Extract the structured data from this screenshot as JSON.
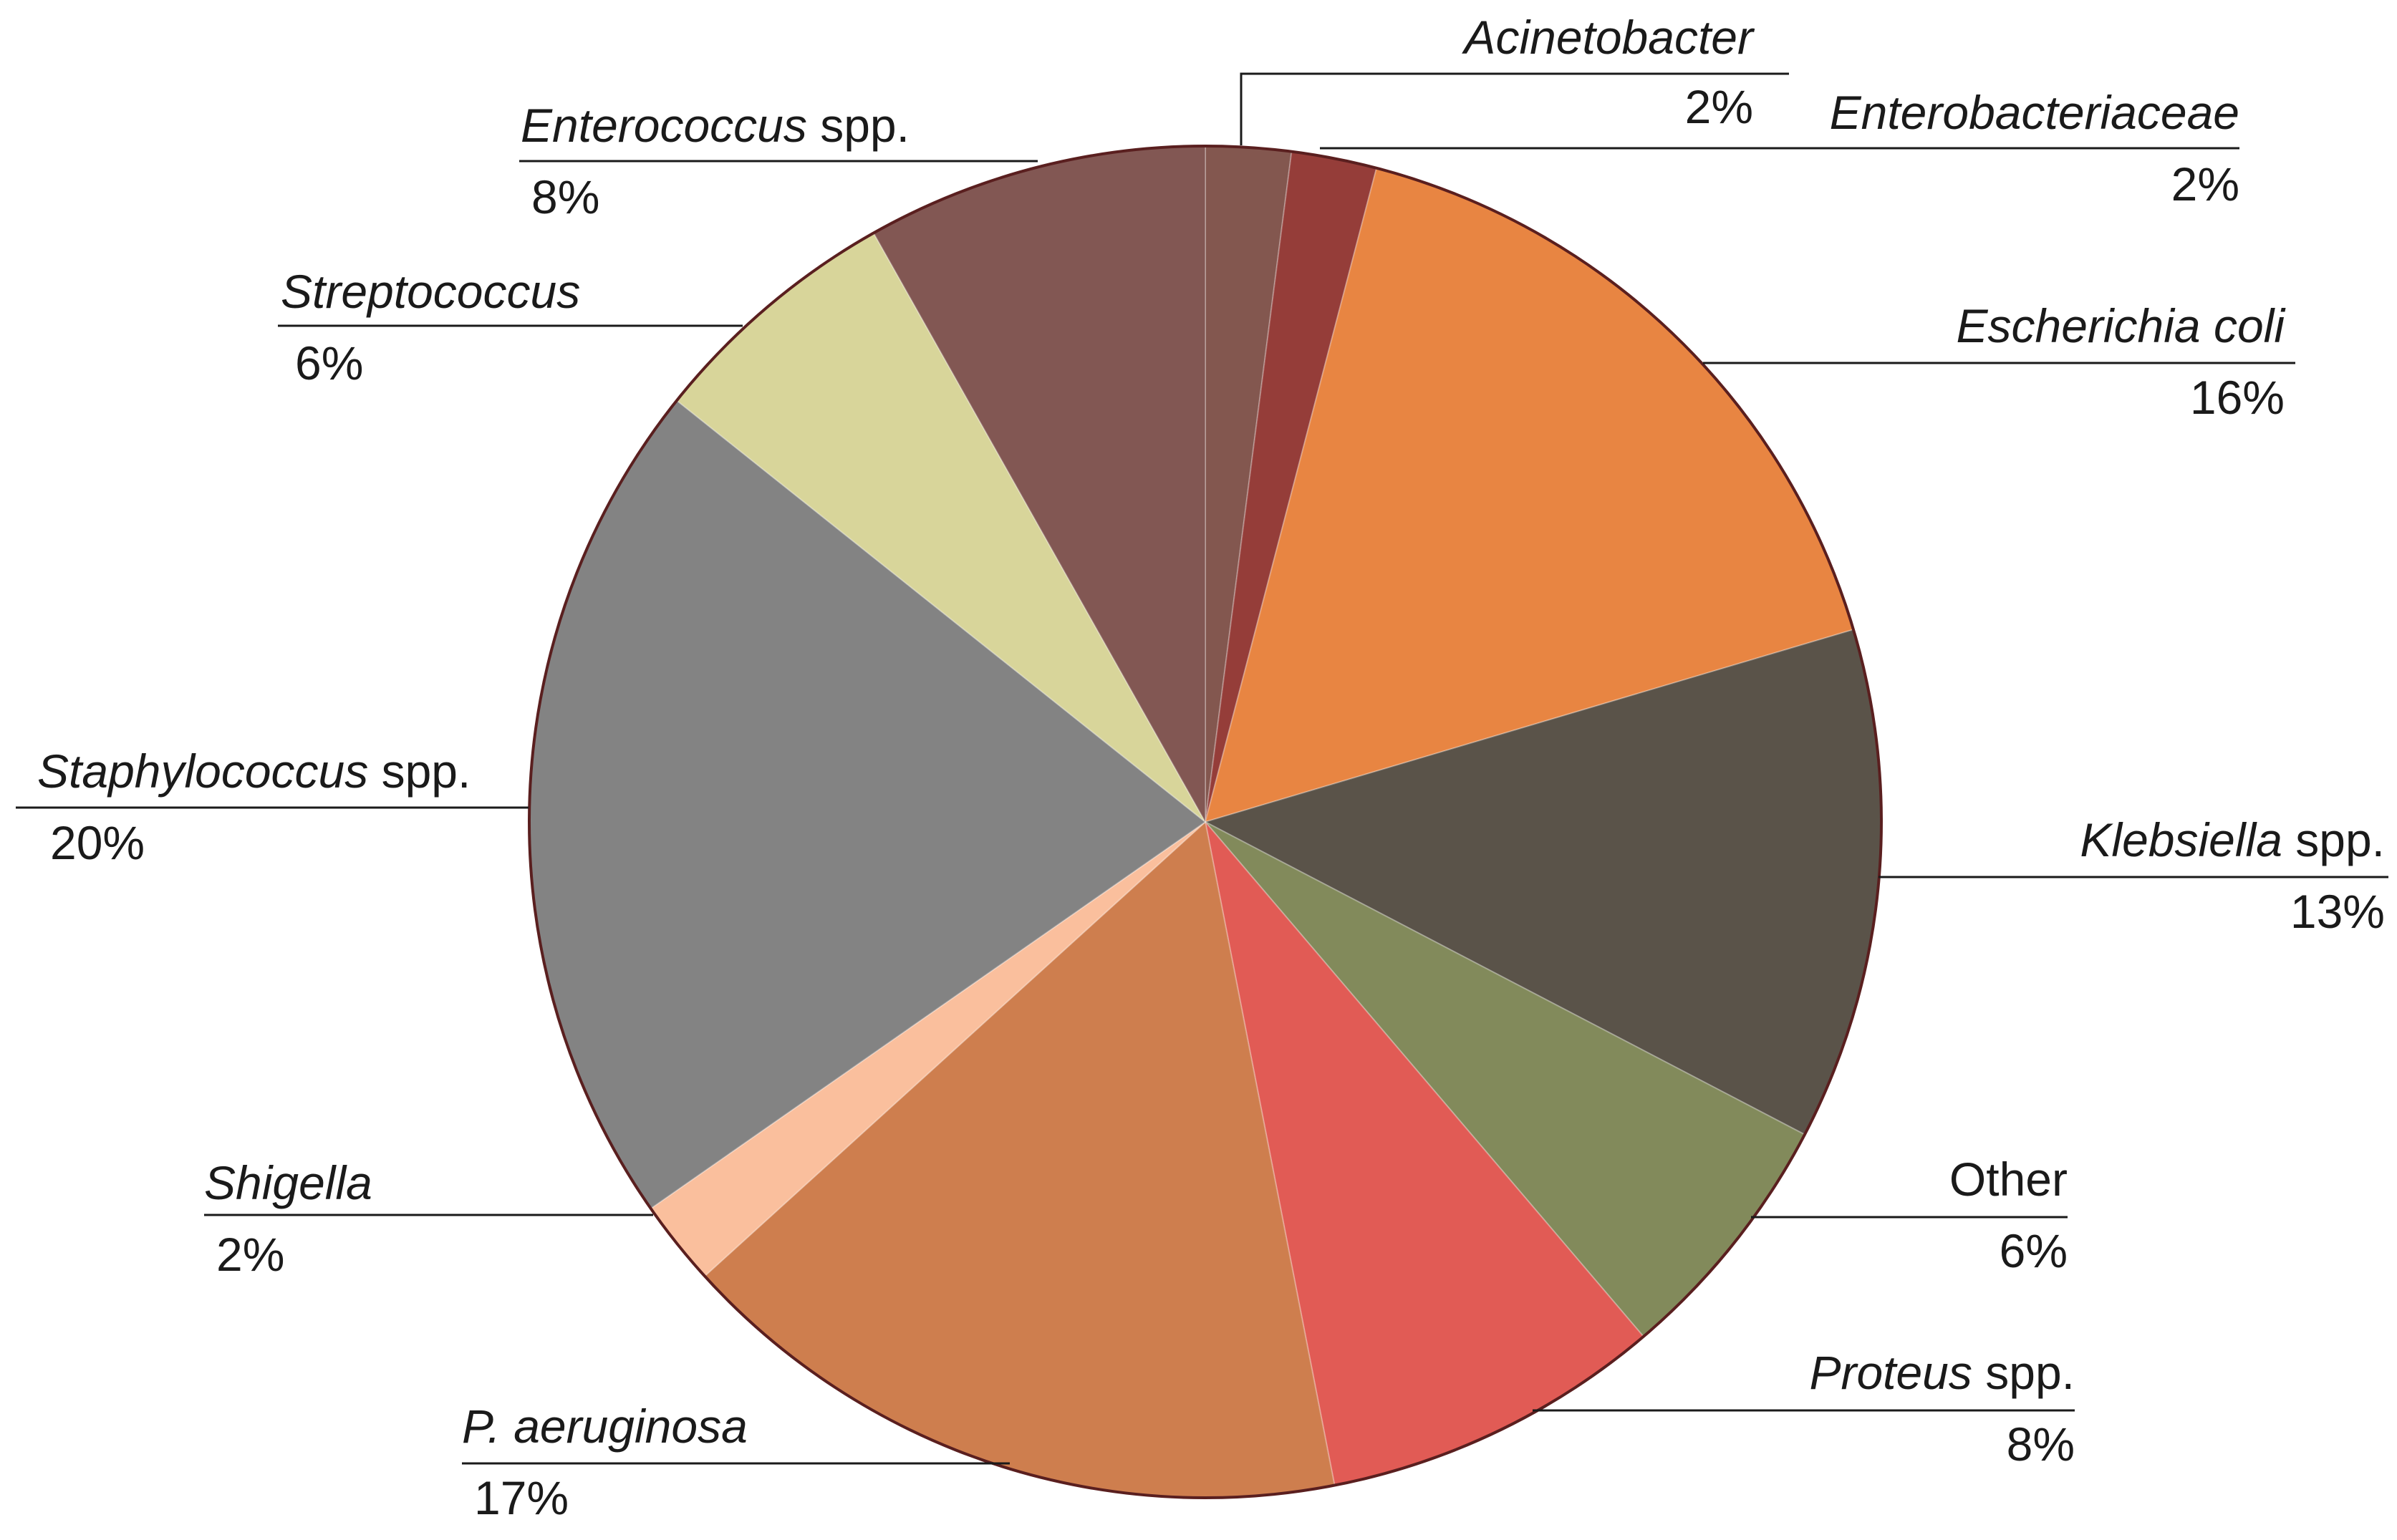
{
  "chart_data": {
    "type": "pie",
    "start_angle_deg": 0,
    "direction": "clockwise",
    "slices": [
      {
        "name_italic": "Acinetobacter",
        "name_suffix": "",
        "percent_label": "2%",
        "value": 2.08,
        "color": "#83574f"
      },
      {
        "name_italic": "Enterobacteriaceae",
        "name_suffix": "",
        "percent_label": "2%",
        "value": 2.08,
        "color": "#953d39"
      },
      {
        "name_italic": "Escherichia coli",
        "name_suffix": "",
        "percent_label": "16%",
        "value": 16.67,
        "color": "#e88542"
      },
      {
        "name_italic": "Klebsiella",
        "name_suffix": " spp.",
        "percent_label": "13%",
        "value": 12.5,
        "color": "#5a5349"
      },
      {
        "name_italic": "",
        "name_suffix": "Other",
        "percent_label": "6%",
        "value": 6.25,
        "color": "#828a5b"
      },
      {
        "name_italic": "Proteus",
        "name_suffix": " spp.",
        "percent_label": "8%",
        "value": 8.33,
        "color": "#e15b55"
      },
      {
        "name_italic": "P. aeruginosa",
        "name_suffix": "",
        "percent_label": "17%",
        "value": 16.67,
        "color": "#ce7e4e"
      },
      {
        "name_italic": "Shigella",
        "name_suffix": "",
        "percent_label": "2%",
        "value": 2.08,
        "color": "#fabf9d"
      },
      {
        "name_italic": "Staphylococcus",
        "name_suffix": " spp.",
        "percent_label": "20%",
        "value": 20.83,
        "color": "#838383"
      },
      {
        "name_italic": "Streptococcus",
        "name_suffix": "",
        "percent_label": "6%",
        "value": 6.25,
        "color": "#d8d59a"
      },
      {
        "name_italic": "Enterococcus",
        "name_suffix": " spp.",
        "percent_label": "8%",
        "value": 8.33,
        "color": "#825753"
      }
    ],
    "outline_color": "#5a1f1f",
    "leader_color": "#1a1a1a"
  }
}
